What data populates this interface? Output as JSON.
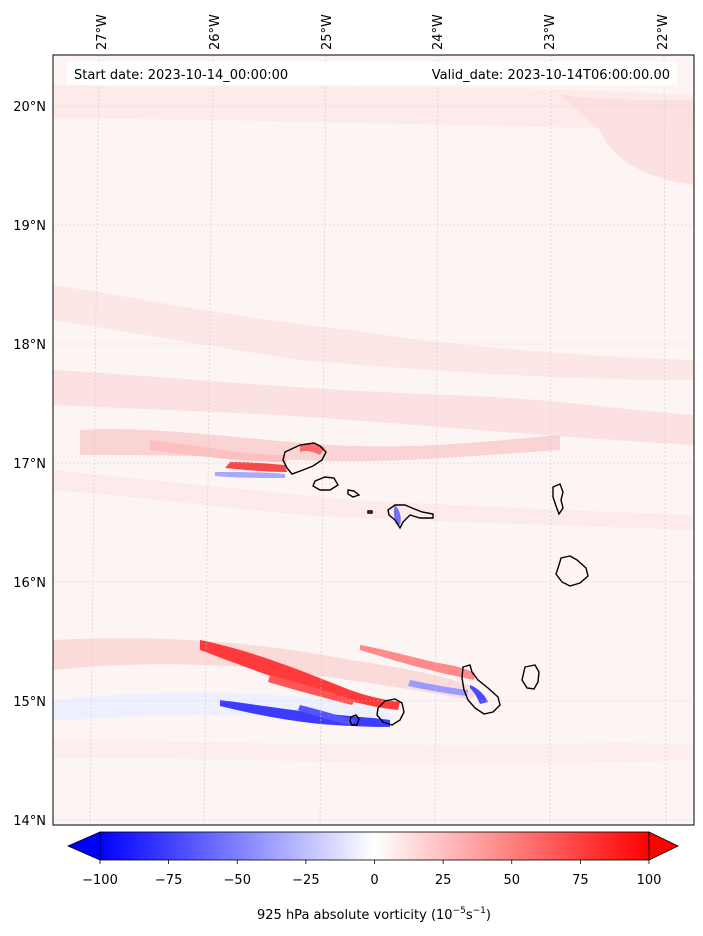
{
  "header": {
    "start_date": "Start date: 2023-10-14_00:00:00",
    "valid_date": "Valid_date: 2023-10-14T06:00:00.00"
  },
  "map": {
    "lon_labels": [
      "27°W",
      "26°W",
      "25°W",
      "24°W",
      "23°W",
      "22°W"
    ],
    "lat_labels": [
      "20°N",
      "19°N",
      "18°N",
      "17°N",
      "16°N",
      "15°N",
      "14°N"
    ],
    "gridlines": true,
    "field": "925 hPa absolute vorticity"
  },
  "colorbar": {
    "tick_labels": [
      "−100",
      "−75",
      "−50",
      "−25",
      "0",
      "25",
      "50",
      "75",
      "100"
    ],
    "min": -100,
    "max": 100,
    "extend": "both",
    "colormap": "bwr",
    "label_main": "925 hPa absolute vorticity (10",
    "label_exp1": "−5",
    "label_mid": "s",
    "label_exp2": "−1",
    "label_end": ")"
  },
  "colors": {
    "negative": "#0000ff",
    "neutral": "#ffffff",
    "positive": "#ff0000",
    "coastline": "#000000",
    "grid": "#cccccc"
  }
}
